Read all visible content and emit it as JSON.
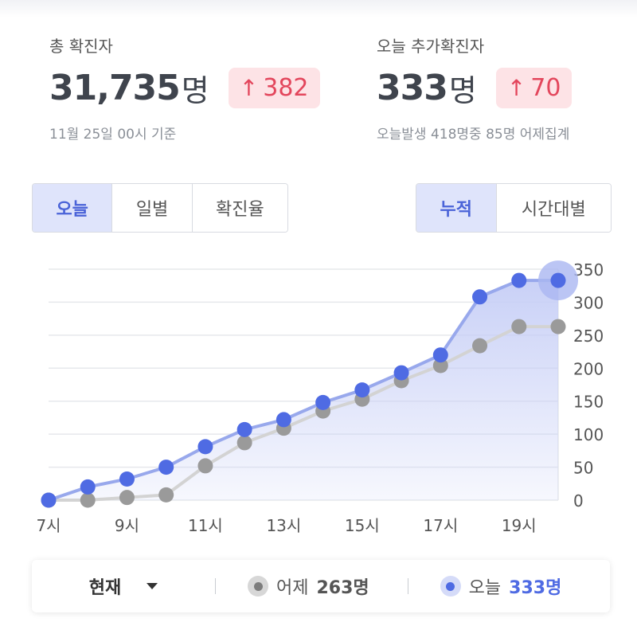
{
  "summary": {
    "total": {
      "label": "총 확진자",
      "value": "31,735",
      "unit": "명",
      "delta_arrow": "↑",
      "delta": "382",
      "note": "11월 25일 00시 기준"
    },
    "today": {
      "label": "오늘 추가확진자",
      "value": "333",
      "unit": "명",
      "delta_arrow": "↑",
      "delta": "70",
      "note": "오늘발생 418명중 85명 어제집계"
    }
  },
  "period_tabs": [
    {
      "label": "오늘",
      "active": true
    },
    {
      "label": "일별",
      "active": false
    },
    {
      "label": "확진율",
      "active": false
    }
  ],
  "mode_tabs": [
    {
      "label": "누적",
      "active": true
    },
    {
      "label": "시간대별",
      "active": false
    }
  ],
  "chart_data": {
    "type": "line",
    "x": [
      7,
      8,
      9,
      10,
      11,
      12,
      13,
      14,
      15,
      16,
      17,
      18,
      19,
      20
    ],
    "x_tick_labels": [
      "7시",
      "",
      "9시",
      "",
      "11시",
      "",
      "13시",
      "",
      "15시",
      "",
      "17시",
      "",
      "19시",
      ""
    ],
    "ylim": [
      0,
      350
    ],
    "y_ticks": [
      0,
      50,
      100,
      150,
      200,
      250,
      300,
      350
    ],
    "grid": true,
    "series": [
      {
        "name": "어제",
        "color": "#9a9a9a",
        "values": [
          0,
          0,
          4,
          8,
          52,
          87,
          109,
          135,
          153,
          181,
          204,
          234,
          263,
          263
        ]
      },
      {
        "name": "오늘",
        "color": "#4f6be3",
        "fill": "#c6cef6",
        "values": [
          0,
          20,
          32,
          50,
          81,
          107,
          122,
          148,
          167,
          193,
          220,
          308,
          333,
          333
        ]
      }
    ]
  },
  "footer": {
    "selector": "현재",
    "legend": [
      {
        "label": "어제",
        "value": "263명",
        "color": "#7d7d7d",
        "ring": "#d7d7d7"
      },
      {
        "label": "오늘",
        "value": "333명",
        "color": "#4f6be3",
        "ring": "#d5dbf8"
      }
    ]
  }
}
